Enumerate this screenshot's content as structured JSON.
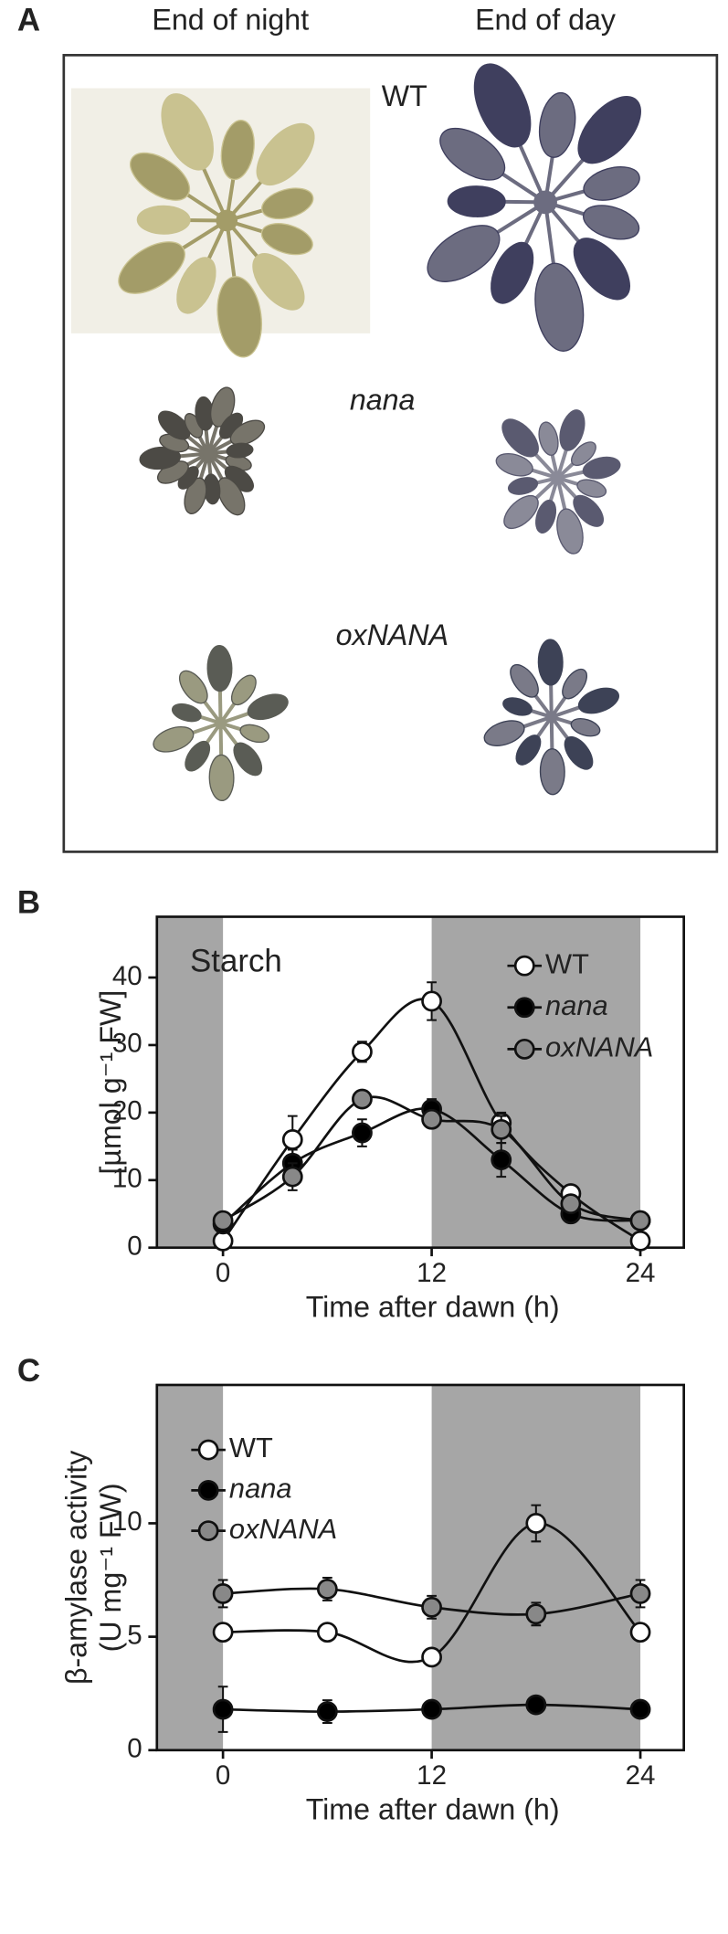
{
  "panel_a": {
    "label": "A",
    "columns": [
      "End of night",
      "End of day"
    ],
    "genotypes": [
      "WT",
      "nana",
      "oxNANA"
    ]
  },
  "chart_data": [
    {
      "type": "line",
      "panel_label": "B",
      "annotation": "Starch",
      "x_label": "Time after dawn (h)",
      "y_label": [
        "[µmol g⁻¹ FW]"
      ],
      "x": [
        0,
        4,
        8,
        12,
        16,
        20,
        24
      ],
      "xlim": [
        -3.8,
        26.5
      ],
      "xticks": [
        0,
        12,
        24
      ],
      "ylim": [
        0,
        49
      ],
      "yticks": [
        0,
        10,
        20,
        30,
        40
      ],
      "night": [
        [
          -4,
          0
        ],
        [
          12,
          24
        ]
      ],
      "series": [
        {
          "name": "WT",
          "color": "#ffffff",
          "style": "normal",
          "values": [
            1,
            16,
            29,
            36.5,
            18.5,
            8,
            1
          ],
          "errors": [
            0.5,
            3.5,
            1.5,
            2.8,
            1.5,
            1.2,
            0.5
          ]
        },
        {
          "name": "nana",
          "color": "#000000",
          "style": "italic",
          "values": [
            3.5,
            12.5,
            17,
            20.5,
            13,
            5,
            4
          ],
          "errors": [
            0.8,
            2,
            2,
            1.5,
            2.5,
            1,
            0.8
          ]
        },
        {
          "name": "oxNANA",
          "color": "#888888",
          "style": "italic",
          "values": [
            4,
            10.5,
            22,
            19,
            17.5,
            6.5,
            4
          ],
          "errors": [
            0.8,
            2,
            1,
            1.2,
            2,
            1,
            0.8
          ]
        }
      ]
    },
    {
      "type": "line",
      "panel_label": "C",
      "x_label": "Time after dawn (h)",
      "y_label": [
        "β-amylase activity",
        "(U mg⁻¹ FW)"
      ],
      "x": [
        0,
        6,
        12,
        18,
        24
      ],
      "xlim": [
        -3.8,
        26.5
      ],
      "xticks": [
        0,
        12,
        24
      ],
      "ylim": [
        0,
        16.1
      ],
      "yticks": [
        0,
        5,
        10
      ],
      "night": [
        [
          -4,
          0
        ],
        [
          12,
          24
        ]
      ],
      "series": [
        {
          "name": "WT",
          "color": "#ffffff",
          "style": "normal",
          "values": [
            5.2,
            5.2,
            4.1,
            10,
            5.2
          ],
          "errors": [
            0.3,
            0.3,
            0.3,
            0.8,
            0.3
          ]
        },
        {
          "name": "nana",
          "color": "#000000",
          "style": "italic",
          "values": [
            1.8,
            1.7,
            1.8,
            2,
            1.8
          ],
          "errors": [
            1,
            0.5,
            0.3,
            0.3,
            0.3
          ]
        },
        {
          "name": "oxNANA",
          "color": "#888888",
          "style": "italic",
          "values": [
            6.9,
            7.1,
            6.3,
            6.0,
            6.9
          ],
          "errors": [
            0.6,
            0.5,
            0.5,
            0.5,
            0.6
          ]
        }
      ]
    }
  ]
}
